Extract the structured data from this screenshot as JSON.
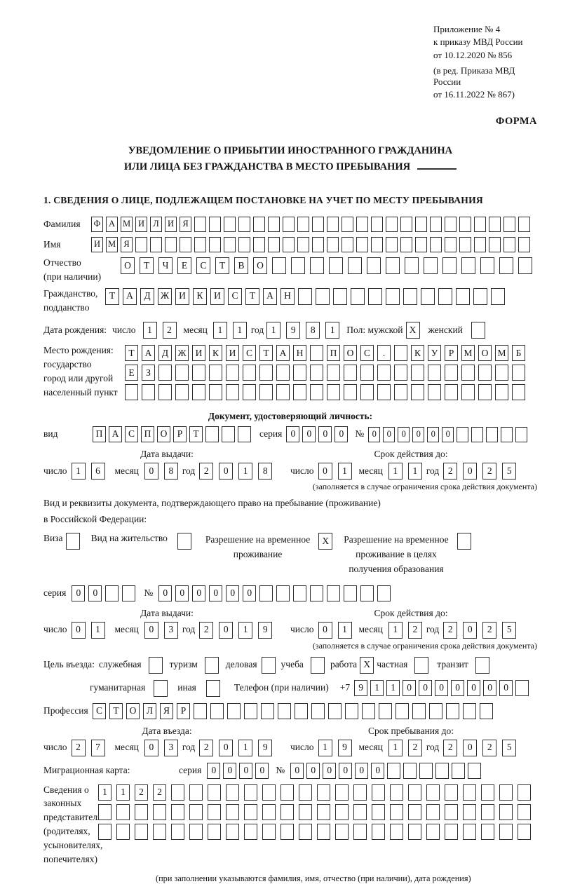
{
  "header": {
    "appendix_lines": [
      "Приложение № 4",
      "к приказу МВД России",
      "от 10.12.2020 № 856"
    ],
    "appendix_note": [
      "(в ред. Приказа МВД России",
      "от 16.11.2022 № 867)"
    ],
    "forma": "ФОРМА"
  },
  "title": {
    "line1": "УВЕДОМЛЕНИЕ О ПРИБЫТИИ ИНОСТРАННОГО ГРАЖДАНИНА",
    "line2": "ИЛИ ЛИЦА БЕЗ ГРАЖДАНСТВА В МЕСТО ПРЕБЫВАНИЯ"
  },
  "section1_heading": "1. СВЕДЕНИЯ О ЛИЦЕ, ПОДЛЕЖАЩЕМ ПОСТАНОВКЕ НА УЧЕТ ПО МЕСТУ ПРЕБЫВАНИЯ",
  "words": {
    "day": "число",
    "month": "месяц",
    "year": "год",
    "series": "серия",
    "number": "№"
  },
  "person": {
    "surname": {
      "label": "Фамилия",
      "value": "ФАМИЛИЯ",
      "total": 30
    },
    "firstname": {
      "label": "Имя",
      "value": "ИМЯ",
      "total": 30
    },
    "patronymic": {
      "label": [
        "Отчество",
        "(при наличии)"
      ],
      "value": "ОТЧЕСТВО",
      "total": 22
    },
    "citizenship": {
      "label": [
        "Гражданство,",
        "подданство"
      ],
      "value": "ТАДЖИКИСТАН",
      "total": 23
    },
    "birth_date": {
      "label": "Дата рождения:",
      "day": {
        "value": "12",
        "total": 2
      },
      "month": {
        "value": "11",
        "total": 2
      },
      "year": {
        "value": "1981",
        "total": 4
      }
    },
    "gender": {
      "label": "Пол: мужской",
      "male_box": {
        "value": "X",
        "total": 1
      },
      "female_label": "женский",
      "female_box": {
        "value": "",
        "total": 1
      }
    },
    "birth_place": {
      "label": [
        "Место рождения:",
        "государство",
        "город или другой",
        "населенный пункт"
      ],
      "line1": {
        "value": "ТАДЖИКИСТАН ПОС. КУРМОМБ",
        "total": 24
      },
      "line2": {
        "value": "ЕЗ",
        "total": 24
      },
      "line3": {
        "value": "",
        "total": 24
      }
    }
  },
  "identity_doc": {
    "heading": "Документ, удостоверяющий личность:",
    "kind_label": "вид",
    "kind": {
      "value": "ПАСПОРТ",
      "total": 10
    },
    "series": {
      "value": "0000",
      "total": 4
    },
    "number": {
      "value": "000000",
      "total": 11
    },
    "issue": {
      "heading": "Дата выдачи:",
      "day": {
        "value": "16",
        "total": 2
      },
      "month": {
        "value": "08",
        "total": 2
      },
      "year": {
        "value": "2018",
        "total": 4
      }
    },
    "valid": {
      "heading": "Срок действия до:",
      "day": {
        "value": "01",
        "total": 2
      },
      "month": {
        "value": "11",
        "total": 2
      },
      "year": {
        "value": "2025",
        "total": 4
      }
    },
    "footnote": "(заполняется в случае ограничения срока действия документа)"
  },
  "residence_doc": {
    "intro1": "Вид и реквизиты документа, подтверждающего право на пребывание (проживание)",
    "intro2": "в Российской Федерации:",
    "visa_label": "Виза",
    "visa_box": {
      "value": "",
      "total": 1
    },
    "permit_label": "Вид на жительство",
    "permit_box": {
      "value": "",
      "total": 1
    },
    "temp_label": [
      "Разрешение на временное",
      "проживание"
    ],
    "temp_box": {
      "value": "X",
      "total": 1
    },
    "temp_edu_label": [
      "Разрешение на временное",
      "проживание в целях",
      "получения образования"
    ],
    "temp_edu_box": {
      "value": "",
      "total": 1
    },
    "series": {
      "value": "00",
      "total": 4
    },
    "number": {
      "value": "000000",
      "total": 14
    },
    "issue": {
      "heading": "Дата выдачи:",
      "day": {
        "value": "01",
        "total": 2
      },
      "month": {
        "value": "03",
        "total": 2
      },
      "year": {
        "value": "2019",
        "total": 4
      }
    },
    "valid": {
      "heading": "Срок действия до:",
      "day": {
        "value": "01",
        "total": 2
      },
      "month": {
        "value": "12",
        "total": 2
      },
      "year": {
        "value": "2025",
        "total": 4
      }
    },
    "footnote": "(заполняется в случае ограничения срока действия документа)"
  },
  "visit": {
    "purpose_label": "Цель въезда:",
    "purposes_row1": [
      {
        "label": "служебная",
        "box": {
          "value": "",
          "total": 1
        }
      },
      {
        "label": "туризм",
        "box": {
          "value": "",
          "total": 1
        }
      },
      {
        "label": "деловая",
        "box": {
          "value": "",
          "total": 1
        }
      },
      {
        "label": "учеба",
        "box": {
          "value": "",
          "total": 1
        }
      },
      {
        "label": "работа",
        "box": {
          "value": "X",
          "total": 1
        }
      },
      {
        "label": "частная",
        "box": {
          "value": "",
          "total": 1
        }
      },
      {
        "label": "транзит",
        "box": {
          "value": "",
          "total": 1
        }
      }
    ],
    "purposes_row2": [
      {
        "label": "гуманитарная",
        "box": {
          "value": "",
          "total": 1
        }
      },
      {
        "label": "иная",
        "box": {
          "value": "",
          "total": 1
        }
      }
    ],
    "phone_label": "Телефон (при наличии)",
    "phone_prefix": "+7",
    "phone": {
      "value": "9110000000",
      "total": 11
    },
    "profession": {
      "label": "Профессия",
      "value": "СТОЛЯР",
      "total": 24
    },
    "entry": {
      "heading": "Дата въезда:",
      "day": {
        "value": "27",
        "total": 2
      },
      "month": {
        "value": "03",
        "total": 2
      },
      "year": {
        "value": "2019",
        "total": 4
      }
    },
    "stay": {
      "heading": "Срок пребывания до:",
      "day": {
        "value": "19",
        "total": 2
      },
      "month": {
        "value": "12",
        "total": 2
      },
      "year": {
        "value": "2025",
        "total": 4
      }
    },
    "migration_card": {
      "label": "Миграционная карта:",
      "series": {
        "value": "0000",
        "total": 4
      },
      "number": {
        "value": "000000",
        "total": 12
      }
    }
  },
  "legal_reps": {
    "label": [
      "Сведения о",
      "законных",
      "представителях",
      "(родителях,",
      "усыновителях,",
      "попечителях)"
    ],
    "line1": {
      "value": "1122",
      "total": 24
    },
    "line2": {
      "value": "",
      "total": 24
    },
    "line3": {
      "value": "",
      "total": 24
    },
    "footnote": "(при заполнении указываются фамилия, имя, отчество (при наличии), дата рождения)"
  }
}
